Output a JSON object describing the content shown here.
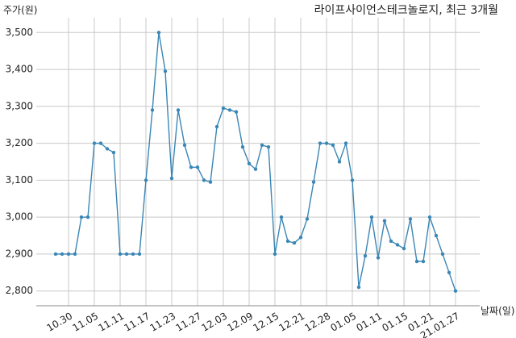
{
  "chart_data": {
    "type": "line",
    "title": "라이프사이언스테크놀로지, 최근 3개월",
    "y_label": "주가(원)",
    "x_label": "날짜(일)",
    "categories": [
      null,
      null,
      "10.30",
      null,
      null,
      null,
      "11.05",
      null,
      null,
      null,
      "11.11",
      null,
      null,
      null,
      "11.17",
      null,
      null,
      null,
      "11.23",
      null,
      null,
      null,
      "11.27",
      null,
      null,
      null,
      "12.03",
      null,
      null,
      null,
      "12.09",
      null,
      null,
      null,
      "12.15",
      null,
      null,
      null,
      "12.21",
      null,
      null,
      null,
      "12.28",
      null,
      null,
      null,
      "01.05",
      null,
      null,
      null,
      "01.11",
      null,
      null,
      null,
      "01.15",
      null,
      null,
      null,
      "01.21",
      null,
      null,
      null,
      "21.01.27"
    ],
    "series": [
      {
        "name": "주가",
        "color": "#3a86b5",
        "values": [
          2900,
          2900,
          2900,
          2900,
          3000,
          3000,
          3200,
          3200,
          3185,
          3175,
          2900,
          2900,
          2900,
          2900,
          3100,
          3290,
          3500,
          3395,
          3105,
          3290,
          3195,
          3135,
          3135,
          3100,
          3095,
          3245,
          3295,
          3290,
          3285,
          3190,
          3145,
          3130,
          3195,
          3190,
          2900,
          3000,
          2935,
          2930,
          2945,
          2995,
          3095,
          3200,
          3200,
          3195,
          3150,
          3200,
          3100,
          2810,
          2895,
          3000,
          2890,
          2990,
          2935,
          2925,
          2915,
          2995,
          2880,
          2880,
          3000,
          2950,
          2900,
          2850,
          2800
        ]
      }
    ],
    "ylim": [
      2760,
      3540
    ],
    "yticks": [
      {
        "value": 2800,
        "label": "2,800"
      },
      {
        "value": 2900,
        "label": "2,900"
      },
      {
        "value": 3000,
        "label": "3,000"
      },
      {
        "value": 3100,
        "label": "3,100"
      },
      {
        "value": 3200,
        "label": "3,200"
      },
      {
        "value": 3300,
        "label": "3,300"
      },
      {
        "value": 3400,
        "label": "3,400"
      },
      {
        "value": 3500,
        "label": "3,500"
      }
    ],
    "grid": true
  }
}
